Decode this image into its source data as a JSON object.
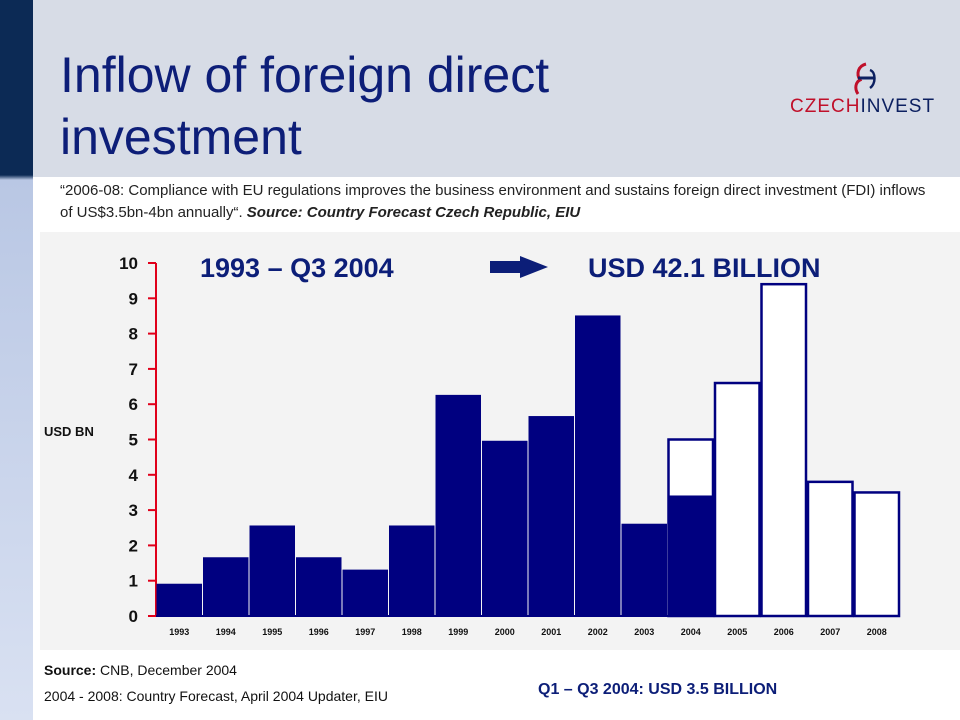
{
  "title": "Inflow of foreign direct investment",
  "logo": {
    "part1": "CZECH",
    "part2": "INVEST"
  },
  "quote": {
    "text": "“2006-08: Compliance with EU regulations improves the business environment and sustains foreign direct investment (FDI) inflows of US$3.5bn-4bn annually“. ",
    "source": "Source: Country Forecast Czech Republic, EIU"
  },
  "headline": {
    "period": "1993 –  Q3 2004",
    "total": "USD 42.1 BILLION"
  },
  "footer": {
    "source_label": "Source:",
    "source_text": " CNB, December 2004",
    "forecast": "2004 - 2008: Country Forecast, April 2004 Updater, EIU",
    "q_total": "Q1 – Q3 2004: USD 3.5 BILLION"
  },
  "colors": {
    "actual": "#000080",
    "forecast": "#ffffff",
    "axis": "#e0001a",
    "title": "#0d1e78"
  },
  "chart_data": {
    "type": "bar",
    "ylabel": "USD BN",
    "ylim": [
      0,
      10
    ],
    "yticks": [
      "0",
      "1",
      "2",
      "3",
      "4",
      "5",
      "6",
      "7",
      "8",
      "9",
      "10"
    ],
    "categories": [
      "1993",
      "1994",
      "1995",
      "1996",
      "1997",
      "1998",
      "1999",
      "2000",
      "2001",
      "2002",
      "2003",
      "2004",
      "2005",
      "2006",
      "2007",
      "2008"
    ],
    "series": [
      {
        "values": [
          0.9,
          1.65,
          2.55,
          1.65,
          1.3,
          2.55,
          6.25,
          4.95,
          5.65,
          8.5,
          2.6,
          3.4,
          null,
          null,
          null,
          null
        ]
      },
      {
        "values": [
          null,
          null,
          null,
          null,
          null,
          null,
          null,
          null,
          null,
          null,
          null,
          5.0,
          6.6,
          9.4,
          3.8,
          3.5
        ]
      }
    ]
  }
}
